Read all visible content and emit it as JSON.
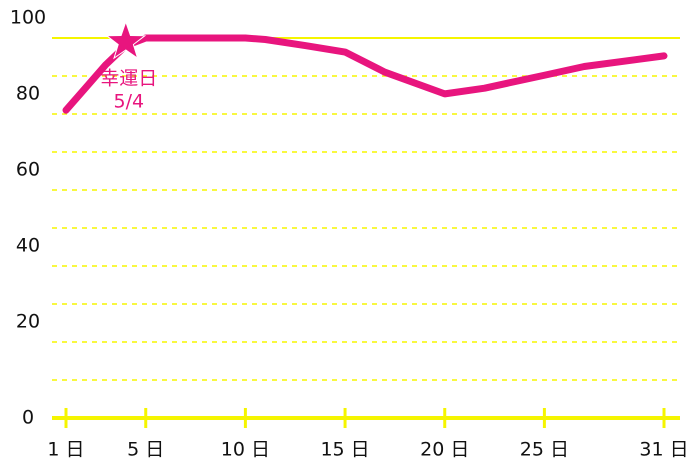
{
  "chart_data": {
    "type": "line",
    "x": [
      1,
      2,
      3,
      4,
      5,
      10,
      11,
      13,
      15,
      17,
      20,
      22,
      25,
      27,
      31
    ],
    "series": [
      {
        "color": "#e8157e",
        "values": [
          81,
          87,
          93,
          98,
          100,
          100,
          99.6,
          98,
          96.3,
          91,
          85.3,
          86.8,
          90.2,
          92.5,
          95.3
        ]
      }
    ],
    "xlim": [
      1,
      31
    ],
    "xticks": [
      {
        "value": 1,
        "label": "1 日"
      },
      {
        "value": 5,
        "label": "5 日"
      },
      {
        "value": 10,
        "label": "10 日"
      },
      {
        "value": 15,
        "label": "15 日"
      },
      {
        "value": 20,
        "label": "20 日"
      },
      {
        "value": 25,
        "label": "25 日"
      },
      {
        "value": 31,
        "label": "31 日"
      }
    ],
    "ylim": [
      0,
      100
    ],
    "yticks": [
      0,
      20,
      40,
      60,
      80,
      100
    ],
    "minor_yticks": [
      10,
      30,
      50,
      70,
      90
    ],
    "grid_color": "#f5f500",
    "annotation": {
      "x": 4,
      "y": 100,
      "label": "幸運日",
      "date": "5/4"
    }
  }
}
